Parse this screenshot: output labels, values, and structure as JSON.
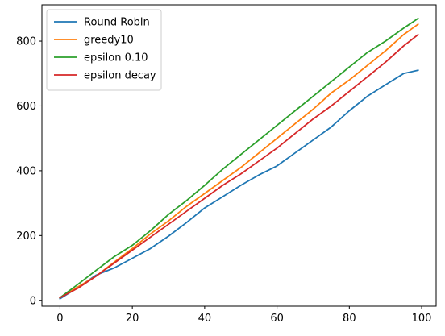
{
  "chart_data": {
    "type": "line",
    "title": "",
    "xlabel": "",
    "ylabel": "",
    "xlim": [
      -5,
      104
    ],
    "ylim": [
      -18,
      912
    ],
    "x_ticks": [
      0,
      20,
      40,
      60,
      80,
      100
    ],
    "y_ticks": [
      0,
      200,
      400,
      600,
      800
    ],
    "x_tick_labels": [
      "0",
      "20",
      "40",
      "60",
      "80",
      "100"
    ],
    "y_tick_labels": [
      "0",
      "200",
      "400",
      "600",
      "800"
    ],
    "grid": false,
    "legend_position": "upper-left",
    "x": [
      0,
      5,
      10,
      15,
      20,
      25,
      30,
      35,
      40,
      45,
      50,
      55,
      60,
      65,
      70,
      75,
      80,
      85,
      90,
      95,
      99
    ],
    "series": [
      {
        "name": "Round Robin",
        "color": "#1f77b4",
        "values": [
          5,
          40,
          78,
          100,
          130,
          160,
          198,
          240,
          285,
          320,
          355,
          387,
          415,
          455,
          495,
          535,
          585,
          630,
          665,
          700,
          710
        ]
      },
      {
        "name": "greedy10",
        "color": "#ff7f0e",
        "values": [
          8,
          42,
          75,
          118,
          160,
          205,
          245,
          290,
          330,
          370,
          410,
          455,
          500,
          545,
          590,
          640,
          680,
          725,
          770,
          820,
          852
        ]
      },
      {
        "name": "epsilon 0.10",
        "color": "#2ca02c",
        "values": [
          8,
          50,
          93,
          135,
          170,
          215,
          265,
          308,
          355,
          405,
          450,
          495,
          540,
          585,
          630,
          675,
          720,
          765,
          800,
          840,
          870
        ]
      },
      {
        "name": "epsilon decay",
        "color": "#d62728",
        "values": [
          8,
          38,
          75,
          115,
          155,
          195,
          235,
          275,
          315,
          355,
          390,
          430,
          470,
          515,
          560,
          600,
          645,
          690,
          735,
          785,
          820
        ]
      }
    ]
  }
}
